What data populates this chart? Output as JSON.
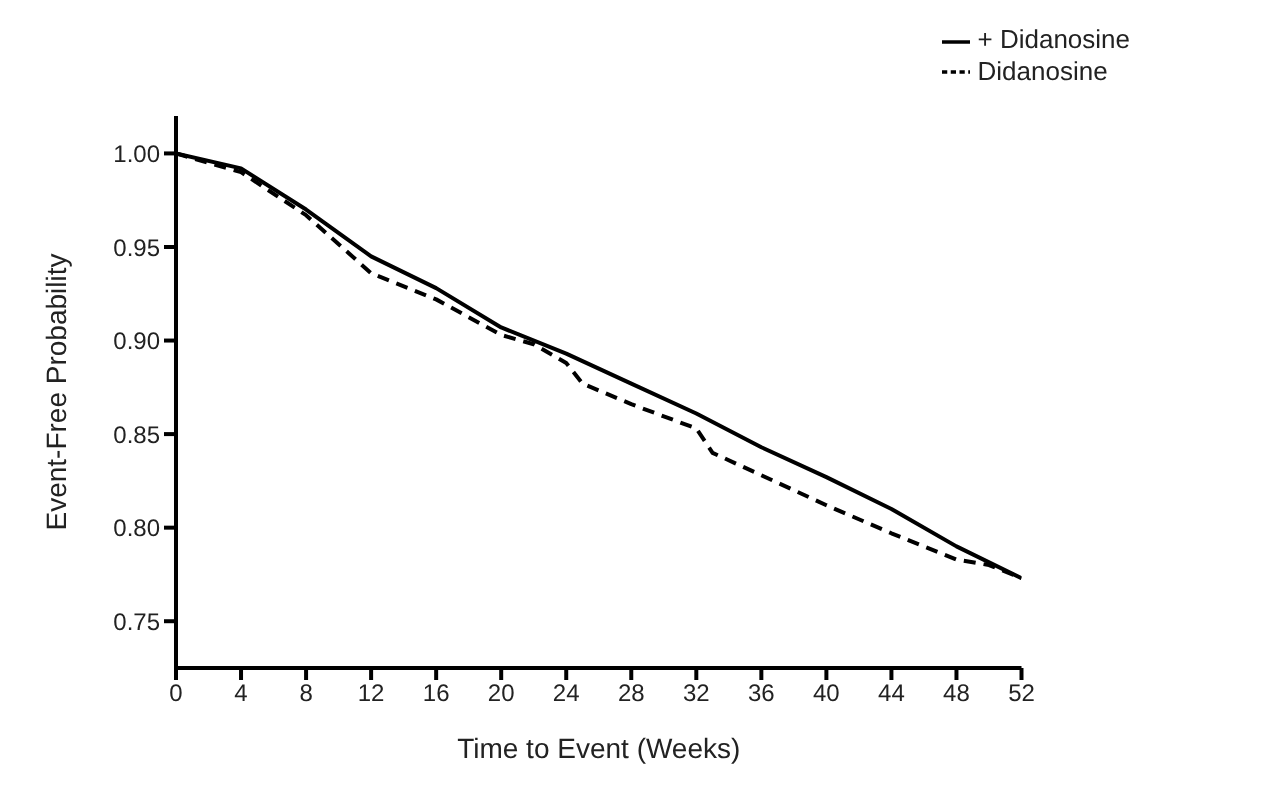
{
  "chart_data": {
    "type": "line",
    "xlabel": "Time to Event (Weeks)",
    "ylabel": "Event-Free Probability",
    "xlim": [
      0,
      52
    ],
    "xticks": [
      0,
      4,
      8,
      12,
      16,
      20,
      24,
      28,
      32,
      36,
      40,
      44,
      48,
      52
    ],
    "ylim": [
      0.725,
      1.02
    ],
    "yticks": [
      {
        "value": 0.75,
        "label": "0.75"
      },
      {
        "value": 0.8,
        "label": "0.80"
      },
      {
        "value": 0.85,
        "label": "0.85"
      },
      {
        "value": 0.9,
        "label": "0.90"
      },
      {
        "value": 0.95,
        "label": "0.95"
      },
      {
        "value": 1.0,
        "label": "1.00"
      }
    ],
    "grid": false,
    "legend": "top right",
    "marker": "none",
    "series": [
      {
        "name": "+ Didanosine",
        "color": "#000000",
        "line_style": "solid",
        "x": [
          0,
          4,
          8,
          12,
          16,
          20,
          24,
          28,
          32,
          36,
          40,
          44,
          48,
          52
        ],
        "values": [
          1.0,
          0.992,
          0.97,
          0.945,
          0.928,
          0.907,
          0.893,
          0.877,
          0.861,
          0.843,
          0.827,
          0.81,
          0.79,
          0.773
        ]
      },
      {
        "name": "Didanosine",
        "color": "#000000",
        "line_style": "dashed",
        "x": [
          0,
          4,
          8,
          12,
          16,
          20,
          22,
          24,
          25,
          28,
          32,
          33,
          36,
          40,
          44,
          48,
          50,
          52
        ],
        "values": [
          1.0,
          0.99,
          0.967,
          0.936,
          0.922,
          0.903,
          0.898,
          0.888,
          0.877,
          0.866,
          0.853,
          0.84,
          0.828,
          0.812,
          0.797,
          0.783,
          0.78,
          0.773
        ]
      }
    ]
  }
}
